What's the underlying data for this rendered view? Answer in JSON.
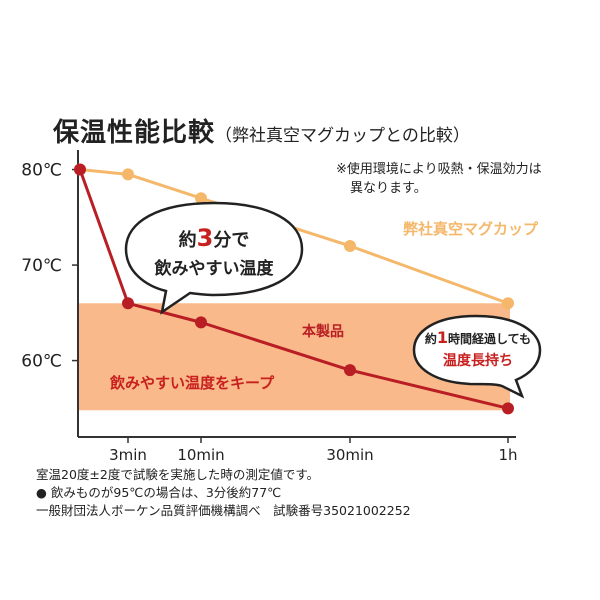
{
  "chart_data": {
    "type": "line",
    "title": "保温性能比較",
    "subtitle": "（弊社真空マグカップとの比較）",
    "x_categories": [
      "",
      "3min",
      "10min",
      "30min",
      "1h"
    ],
    "y_ticks": [
      "80℃",
      "70℃",
      "60℃"
    ],
    "y_tick_values": [
      80,
      70,
      60
    ],
    "ylim": [
      52,
      81
    ],
    "series": [
      {
        "name": "弊社真空マグカップ",
        "color": "#f5b86b",
        "values": [
          80,
          79.5,
          77,
          72,
          66
        ]
      },
      {
        "name": "本製品",
        "color": "#b81e24",
        "values": [
          80,
          66,
          64,
          59,
          55
        ]
      }
    ],
    "drinkable_band": {
      "label": "飲みやすい温度をキープ",
      "range": [
        54.8,
        66
      ],
      "color": "#f9b98a"
    },
    "callout_3min": {
      "line1_a": "約",
      "line1_num": "3",
      "line1_b": "分で",
      "line2": "飲みやすい温度"
    },
    "callout_1h": {
      "line1_a": "約",
      "line1_num": "1",
      "line1_b": "時間経過しても",
      "line2": "温度長持ち"
    },
    "note": {
      "line1": "※使用環境により吸熱・保温効力は",
      "line2": "異なります。"
    },
    "footnotes": [
      "室温20度±2度で試験を実施した時の測定値です。",
      "● 飲みものが95℃の場合は、3分後約77℃",
      "一般財団法人ボーケン品質評価機構調べ　試験番号35021002252"
    ]
  }
}
